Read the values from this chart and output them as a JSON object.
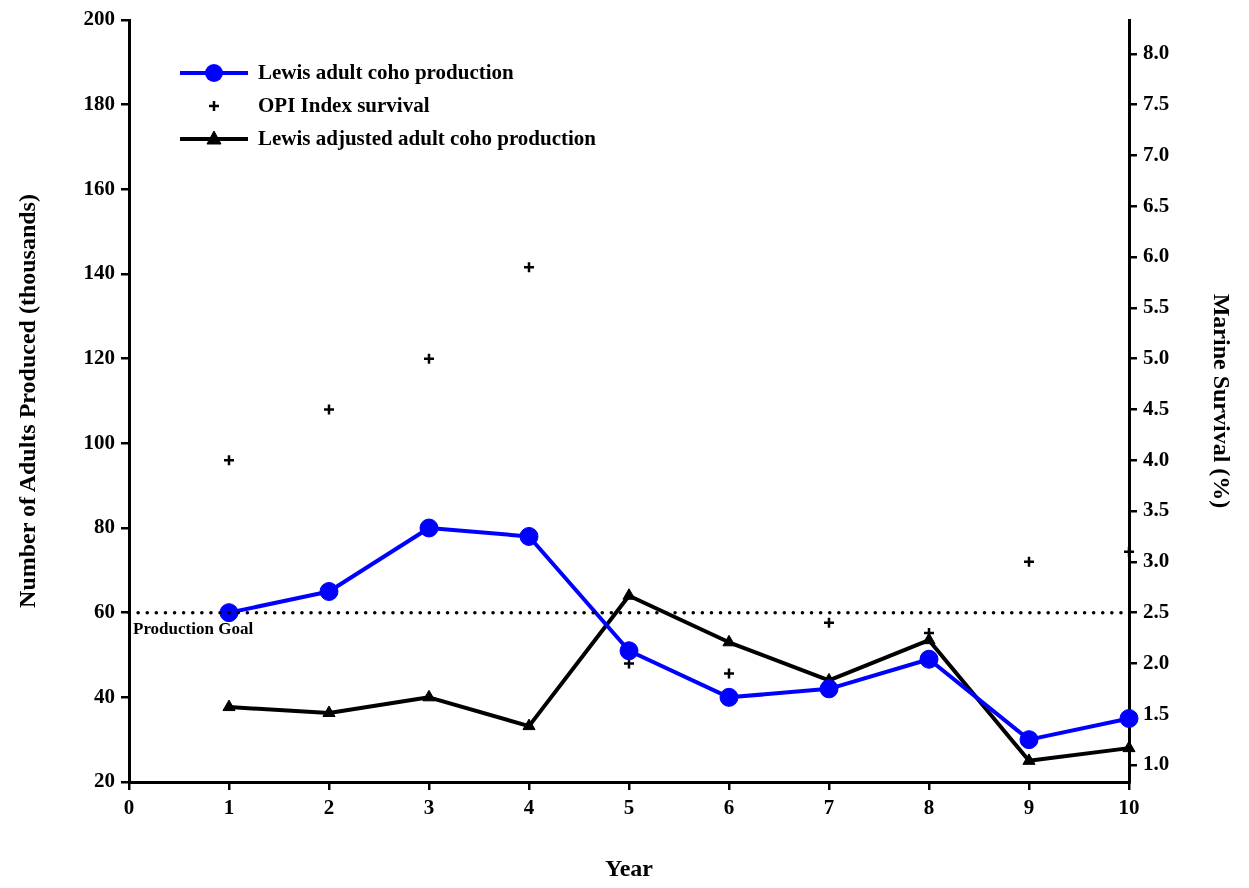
{
  "chart_data": {
    "type": "line",
    "xlabel": "Year",
    "ylabel": "Number of Adults Produced (thousands)",
    "y2label": "Marine Survival (%)",
    "x": [
      1,
      2,
      3,
      4,
      5,
      6,
      7,
      8,
      9,
      10
    ],
    "series": [
      {
        "name": "Lewis adult coho production",
        "color": "#0000ff",
        "marker": "circle",
        "values": [
          60,
          65,
          80,
          78,
          51,
          40,
          42,
          49,
          30,
          35
        ]
      },
      {
        "name": "OPI Index survival",
        "type": "scatter",
        "axis": "y2",
        "color": "#000000",
        "marker": "cross",
        "values": [
          4.0,
          4.5,
          5.0,
          5.9,
          2.0,
          1.9,
          2.4,
          2.3,
          3.0,
          3.1
        ]
      },
      {
        "name": "Lewis adjusted adult coho production",
        "color": "#000000",
        "marker": "triangle",
        "values": [
          37.7,
          36.3,
          40,
          33.2,
          64,
          53,
          44,
          53.5,
          25,
          28
        ]
      }
    ],
    "xlim": [
      0,
      10
    ],
    "xticks": [
      0,
      1,
      2,
      3,
      4,
      5,
      6,
      7,
      8,
      9,
      10
    ],
    "ylim": [
      20,
      200
    ],
    "yticks": [
      20,
      40,
      60,
      80,
      100,
      120,
      140,
      160,
      180,
      200
    ],
    "y2lim": [
      0.833,
      8.333
    ],
    "y2ticks": [
      {
        "value": 1,
        "label": "1.0"
      },
      {
        "value": 1.5,
        "label": "1.5"
      },
      {
        "value": 2,
        "label": "2.0"
      },
      {
        "value": 2.5,
        "label": "2.5"
      },
      {
        "value": 3,
        "label": "3.0"
      },
      {
        "value": 3.5,
        "label": "3.5"
      },
      {
        "value": 4,
        "label": "4.0"
      },
      {
        "value": 4.5,
        "label": "4.5"
      },
      {
        "value": 5,
        "label": "5.0"
      },
      {
        "value": 5.5,
        "label": "5.5"
      },
      {
        "value": 6,
        "label": "6.0"
      },
      {
        "value": 6.5,
        "label": "6.5"
      },
      {
        "value": 7,
        "label": "7.0"
      },
      {
        "value": 7.5,
        "label": "7.5"
      },
      {
        "value": 8,
        "label": "8.0"
      }
    ],
    "ref_lines": [
      {
        "axis": "y",
        "value": 60,
        "label": "Production Goal",
        "color": "#000000",
        "line_style": "dotted"
      }
    ],
    "grid": false,
    "legend": "top left"
  }
}
